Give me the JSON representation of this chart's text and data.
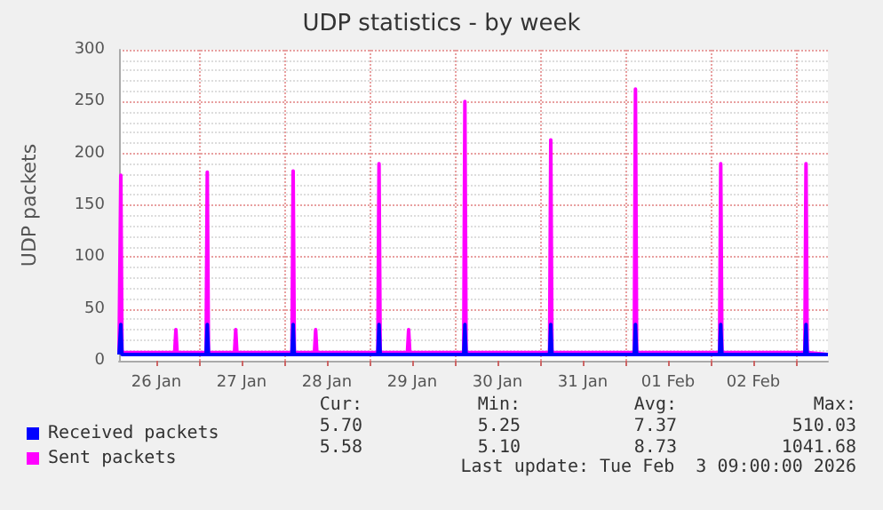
{
  "chart_data": {
    "type": "line",
    "title": "UDP statistics - by week",
    "ylabel": "UDP packets",
    "xlim": [
      "2026-01-26T01:30",
      "2026-02-03T09:00"
    ],
    "xticks": [
      {
        "value": "2026-01-26T12:00",
        "label": "26 Jan"
      },
      {
        "value": "2026-01-27T00:00",
        "label": null
      },
      {
        "value": "2026-01-27T12:00",
        "label": "27 Jan"
      },
      {
        "value": "2026-01-28T00:00",
        "label": null
      },
      {
        "value": "2026-01-28T12:00",
        "label": "28 Jan"
      },
      {
        "value": "2026-01-29T00:00",
        "label": null
      },
      {
        "value": "2026-01-29T12:00",
        "label": "29 Jan"
      },
      {
        "value": "2026-01-30T00:00",
        "label": null
      },
      {
        "value": "2026-01-30T12:00",
        "label": "30 Jan"
      },
      {
        "value": "2026-01-31T00:00",
        "label": null
      },
      {
        "value": "2026-01-31T12:00",
        "label": "31 Jan"
      },
      {
        "value": "2026-02-01T00:00",
        "label": null
      },
      {
        "value": "2026-02-01T12:00",
        "label": "01 Feb"
      },
      {
        "value": "2026-02-02T00:00",
        "label": null
      },
      {
        "value": "2026-02-02T12:00",
        "label": "02 Feb"
      },
      {
        "value": "2026-02-03T00:00",
        "label": null
      }
    ],
    "ylim": [
      0,
      300
    ],
    "yticks": [
      0,
      50,
      100,
      150,
      200,
      250,
      300
    ],
    "grid": true,
    "legend": "bottom",
    "marker": "none",
    "line_style": "solid",
    "series": [
      {
        "name": "Received packets",
        "color": "#0000ff",
        "x": [
          "2026-01-26T01:30",
          "2026-01-26T01:40",
          "2026-01-26T02:00",
          "2026-01-26T02:20",
          "2026-01-27T02:00",
          "2026-01-27T02:20",
          "2026-01-27T02:40",
          "2026-01-28T02:10",
          "2026-01-28T02:30",
          "2026-01-28T02:50",
          "2026-01-29T02:20",
          "2026-01-29T02:40",
          "2026-01-29T03:00",
          "2026-01-30T02:30",
          "2026-01-30T02:50",
          "2026-01-30T03:10",
          "2026-01-31T02:40",
          "2026-01-31T03:00",
          "2026-01-31T03:20",
          "2026-02-01T02:30",
          "2026-02-01T02:50",
          "2026-02-01T03:10",
          "2026-02-02T02:30",
          "2026-02-02T02:50",
          "2026-02-02T03:10",
          "2026-02-03T02:30",
          "2026-02-03T02:50",
          "2026-02-03T03:10",
          "2026-02-03T09:00"
        ],
        "values": [
          6,
          6,
          35,
          6,
          6,
          35,
          6,
          6,
          35,
          6,
          6,
          35,
          6,
          6,
          35,
          6,
          6,
          35,
          6,
          6,
          35,
          6,
          6,
          35,
          6,
          6,
          35,
          6,
          6
        ]
      },
      {
        "name": "Sent packets",
        "color": "#ff00ff",
        "x": [
          "2026-01-26T01:30",
          "2026-01-26T01:40",
          "2026-01-26T02:00",
          "2026-01-26T02:20",
          "2026-01-26T17:10",
          "2026-01-26T17:30",
          "2026-01-26T17:50",
          "2026-01-27T02:00",
          "2026-01-27T02:20",
          "2026-01-27T02:40",
          "2026-01-27T10:00",
          "2026-01-27T10:20",
          "2026-01-27T10:40",
          "2026-01-28T02:10",
          "2026-01-28T02:30",
          "2026-01-28T02:50",
          "2026-01-28T08:30",
          "2026-01-28T08:50",
          "2026-01-28T09:10",
          "2026-01-29T02:20",
          "2026-01-29T02:40",
          "2026-01-29T03:00",
          "2026-01-29T10:40",
          "2026-01-29T11:00",
          "2026-01-29T11:20",
          "2026-01-30T02:30",
          "2026-01-30T02:50",
          "2026-01-30T03:10",
          "2026-01-31T02:40",
          "2026-01-31T03:00",
          "2026-01-31T03:20",
          "2026-02-01T02:30",
          "2026-02-01T02:50",
          "2026-02-01T03:10",
          "2026-02-02T02:30",
          "2026-02-02T02:50",
          "2026-02-02T03:10",
          "2026-02-03T02:30",
          "2026-02-03T02:50",
          "2026-02-03T03:10",
          "2026-02-03T09:00"
        ],
        "values": [
          8,
          8,
          179,
          8,
          8,
          30,
          8,
          8,
          182,
          8,
          8,
          30,
          8,
          8,
          183,
          8,
          8,
          30,
          8,
          8,
          190,
          8,
          8,
          30,
          8,
          8,
          250,
          8,
          8,
          213,
          8,
          8,
          262,
          8,
          8,
          190,
          8,
          8,
          190,
          8,
          6
        ]
      }
    ],
    "annotations": [
      "Cur:",
      "Min:",
      "Avg:",
      "Max:",
      "5.70",
      "5.25",
      "7.37",
      "510.03",
      "5.58",
      "5.10",
      "8.73",
      "1041.68",
      "Last update: Tue Feb  3 09:00:00 2026"
    ]
  }
}
